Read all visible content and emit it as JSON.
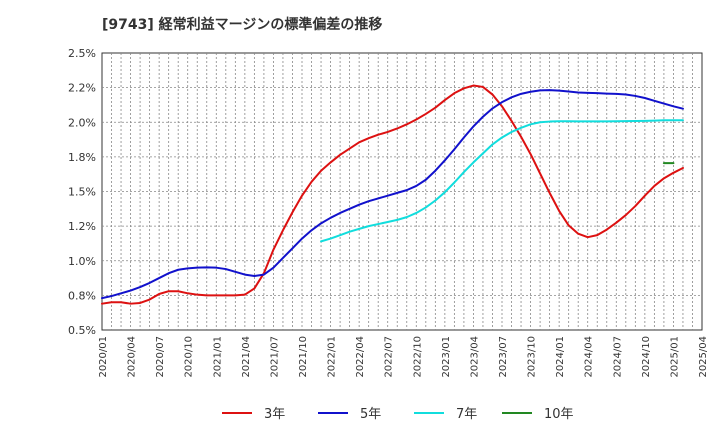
{
  "chart_data": {
    "type": "line",
    "title": "[9743]  経常利益マージンの標準偏差の推移",
    "xlabel": "",
    "ylabel": "",
    "x_ticks": [
      "2020/01",
      "2020/04",
      "2020/07",
      "2020/10",
      "2021/01",
      "2021/04",
      "2021/07",
      "2021/10",
      "2022/01",
      "2022/04",
      "2022/07",
      "2022/10",
      "2023/01",
      "2023/04",
      "2023/07",
      "2023/10",
      "2024/01",
      "2024/04",
      "2024/07",
      "2024/10",
      "2025/01",
      "2025/04"
    ],
    "y_ticks": [
      "0.5%",
      "0.8%",
      "1.0%",
      "1.2%",
      "1.5%",
      "1.8%",
      "2.0%",
      "2.2%",
      "2.5%"
    ],
    "ylim": [
      0.5,
      2.5
    ],
    "grid": true,
    "legend_position": "bottom",
    "series": [
      {
        "name": "3年",
        "color": "#dd1111",
        "start": "2020/01",
        "values": [
          0.69,
          0.7,
          0.7,
          0.69,
          0.695,
          0.72,
          0.76,
          0.78,
          0.78,
          0.765,
          0.755,
          0.75,
          0.75,
          0.75,
          0.75,
          0.755,
          0.8,
          0.91,
          1.08,
          1.22,
          1.35,
          1.47,
          1.57,
          1.65,
          1.71,
          1.765,
          1.81,
          1.855,
          1.885,
          1.91,
          1.93,
          1.955,
          1.985,
          2.02,
          2.06,
          2.105,
          2.16,
          2.21,
          2.245,
          2.265,
          2.255,
          2.2,
          2.115,
          2.01,
          1.895,
          1.77,
          1.63,
          1.49,
          1.36,
          1.255,
          1.195,
          1.17,
          1.185,
          1.225,
          1.275,
          1.33,
          1.395,
          1.47,
          1.54,
          1.595,
          1.635,
          1.67
        ]
      },
      {
        "name": "5年",
        "color": "#1111cc",
        "start": "2020/01",
        "values": [
          0.73,
          0.745,
          0.765,
          0.785,
          0.81,
          0.84,
          0.875,
          0.91,
          0.935,
          0.945,
          0.95,
          0.952,
          0.95,
          0.94,
          0.92,
          0.9,
          0.89,
          0.9,
          0.95,
          1.02,
          1.09,
          1.16,
          1.22,
          1.27,
          1.31,
          1.345,
          1.375,
          1.405,
          1.43,
          1.45,
          1.47,
          1.49,
          1.51,
          1.54,
          1.585,
          1.65,
          1.725,
          1.805,
          1.89,
          1.97,
          2.04,
          2.1,
          2.145,
          2.18,
          2.205,
          2.22,
          2.23,
          2.232,
          2.228,
          2.222,
          2.215,
          2.212,
          2.21,
          2.207,
          2.205,
          2.2,
          2.19,
          2.175,
          2.155,
          2.135,
          2.115,
          2.098
        ]
      },
      {
        "name": "7年",
        "color": "#11dddd",
        "start": "2021/12",
        "values": [
          1.14,
          1.16,
          1.185,
          1.21,
          1.23,
          1.25,
          1.265,
          1.28,
          1.295,
          1.315,
          1.345,
          1.385,
          1.435,
          1.495,
          1.565,
          1.64,
          1.71,
          1.775,
          1.84,
          1.89,
          1.93,
          1.96,
          1.985,
          2.0,
          2.005,
          2.007,
          2.007,
          2.006,
          2.006,
          2.006,
          2.006,
          2.007,
          2.008,
          2.009,
          2.01,
          2.012,
          2.014,
          2.014,
          2.014
        ]
      },
      {
        "name": "10年",
        "color": "#228822",
        "start": "2024/12",
        "values": [
          1.705,
          1.705
        ]
      }
    ]
  }
}
